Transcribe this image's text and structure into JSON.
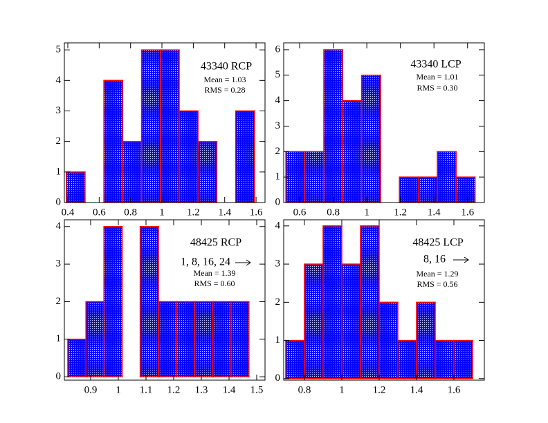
{
  "chart_data": [
    {
      "type": "histogram",
      "title": "43340 RCP",
      "annotations": [
        "Mean = 1.03",
        "RMS = 0.28"
      ],
      "bins": [
        0.39,
        0.51,
        0.63,
        0.75,
        0.87,
        0.99,
        1.11,
        1.23,
        1.35,
        1.47,
        1.59
      ],
      "values": [
        1,
        0,
        4,
        2,
        5,
        5,
        3,
        2,
        0,
        3
      ],
      "color": "#0000ff",
      "edgecolor": "#ff0000",
      "xlim": [
        0.378,
        1.657
      ],
      "ylim": [
        0,
        5.23
      ],
      "xticks": [
        0.4,
        0.6,
        0.8,
        1,
        1.2,
        1.4,
        1.6
      ],
      "yticks": [
        0,
        1,
        2,
        3,
        4,
        5
      ]
    },
    {
      "type": "histogram",
      "title": "43340 LCP",
      "annotations": [
        "Mean = 1.01",
        "RMS = 0.30"
      ],
      "bins": [
        0.518,
        0.631,
        0.744,
        0.856,
        0.969,
        1.082,
        1.194,
        1.307,
        1.42,
        1.532,
        1.645
      ],
      "values": [
        2,
        2,
        6,
        4,
        5,
        0,
        1,
        1,
        2,
        1
      ],
      "color": "#0000ff",
      "edgecolor": "#ff0000",
      "xlim": [
        0.505,
        1.7
      ],
      "ylim": [
        0,
        6.27
      ],
      "xticks": [
        0.6,
        0.8,
        1,
        1.2,
        1.4,
        1.6
      ],
      "yticks": [
        0,
        1,
        2,
        3,
        4,
        5,
        6
      ]
    },
    {
      "type": "histogram",
      "title": "48425 RCP",
      "annotations": [
        "1, 8, 16, 24",
        "Mean = 1.39",
        "RMS = 0.60"
      ],
      "bins": [
        0.8175,
        0.883,
        0.948,
        1.014,
        1.079,
        1.145,
        1.21,
        1.276,
        1.341,
        1.407,
        1.472
      ],
      "values": [
        1,
        2,
        4,
        0,
        4,
        2,
        2,
        2,
        2,
        2
      ],
      "color": "#0000ff",
      "edgecolor": "#ff0000",
      "xlim": [
        0.805,
        1.53
      ],
      "ylim": [
        -0.09,
        4.18
      ],
      "xticks": [
        0.9,
        1,
        1.1,
        1.2,
        1.3,
        1.4,
        1.5
      ],
      "yticks": [
        0,
        1,
        2,
        3,
        4
      ]
    },
    {
      "type": "histogram",
      "title": "48425 LCP",
      "annotations": [
        "8, 16",
        "Mean = 1.29",
        "RMS = 0.56"
      ],
      "bins": [
        0.7,
        0.8,
        0.9,
        1.0,
        1.1,
        1.2,
        1.3,
        1.4,
        1.5,
        1.6,
        1.7
      ],
      "values": [
        1,
        3,
        4,
        3,
        4,
        2,
        1,
        2,
        1,
        1
      ],
      "color": "#0000ff",
      "edgecolor": "#ff0000",
      "xlim": [
        0.689,
        1.763
      ],
      "ylim": [
        -0.04,
        4.16
      ],
      "xticks": [
        0.8,
        1,
        1.2,
        1.4,
        1.6
      ],
      "yticks": [
        0,
        1,
        2,
        3,
        4
      ]
    }
  ]
}
